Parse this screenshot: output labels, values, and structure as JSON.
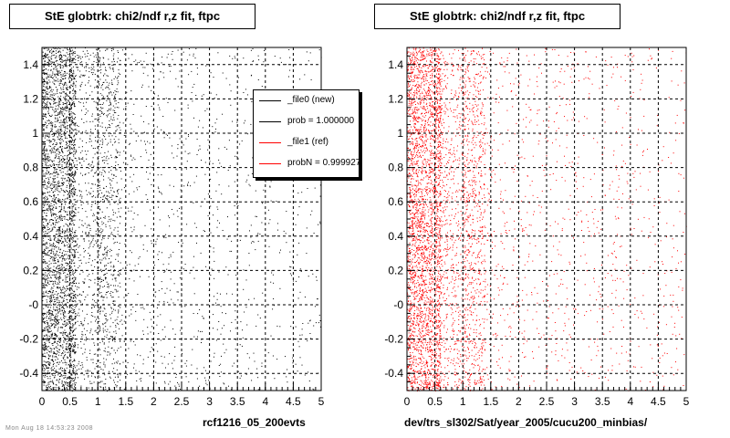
{
  "panels": [
    {
      "title": "StE globtrk: chi2/ndf r,z fit, ftpc",
      "xlabel": "rcf1216_05_200evts",
      "color": "#000000"
    },
    {
      "title": "StE globtrk: chi2/ndf r,z fit, ftpc",
      "xlabel": "dev/trs_sl302/Sat/year_2005/cucu200_minbias/",
      "color": "#ff0000"
    }
  ],
  "legend": {
    "entries": [
      {
        "label": "_file0 (new)",
        "color": "#000000"
      },
      {
        "label": "prob = 1.000000",
        "color": "#000000"
      },
      {
        "label": "_file1 (ref)",
        "color": "#ff0000"
      },
      {
        "label": "probN = 0.999927",
        "color": "#ff0000"
      }
    ]
  },
  "footer_stamp": "Mon Aug 18 14:53:23 2008",
  "chart_data": [
    {
      "type": "scatter",
      "title": "StE globtrk: chi2/ndf r,z fit, ftpc",
      "xlabel": "rcf1216_05_200evts",
      "ylabel": "",
      "xlim": [
        0,
        5
      ],
      "ylim": [
        -0.5,
        1.5
      ],
      "xticks": [
        "0",
        "0.5",
        "1",
        "1.5",
        "2",
        "2.5",
        "3",
        "3.5",
        "4",
        "4.5",
        "5"
      ],
      "yticks": [
        "-0.4",
        "-0.2",
        "-0",
        "0.2",
        "0.4",
        "0.6",
        "0.8",
        "1",
        "1.2",
        "1.4"
      ],
      "grid": true,
      "density_profile": "decreasing in x, concentrated below x=0.6",
      "color": "#000000",
      "legend": "top-right"
    },
    {
      "type": "scatter",
      "title": "StE globtrk: chi2/ndf r,z fit, ftpc",
      "xlabel": "dev/trs_sl302/Sat/year_2005/cucu200_minbias/",
      "ylabel": "",
      "xlim": [
        0,
        5
      ],
      "ylim": [
        -0.5,
        1.5
      ],
      "xticks": [
        "0",
        "0.5",
        "1",
        "1.5",
        "2",
        "2.5",
        "3",
        "3.5",
        "4",
        "4.5",
        "5"
      ],
      "yticks": [
        "-0.4",
        "-0.2",
        "-0",
        "0.2",
        "0.4",
        "0.6",
        "0.8",
        "1",
        "1.2",
        "1.4"
      ],
      "grid": true,
      "density_profile": "decreasing in x, concentrated below x=0.6",
      "color": "#ff0000"
    }
  ]
}
